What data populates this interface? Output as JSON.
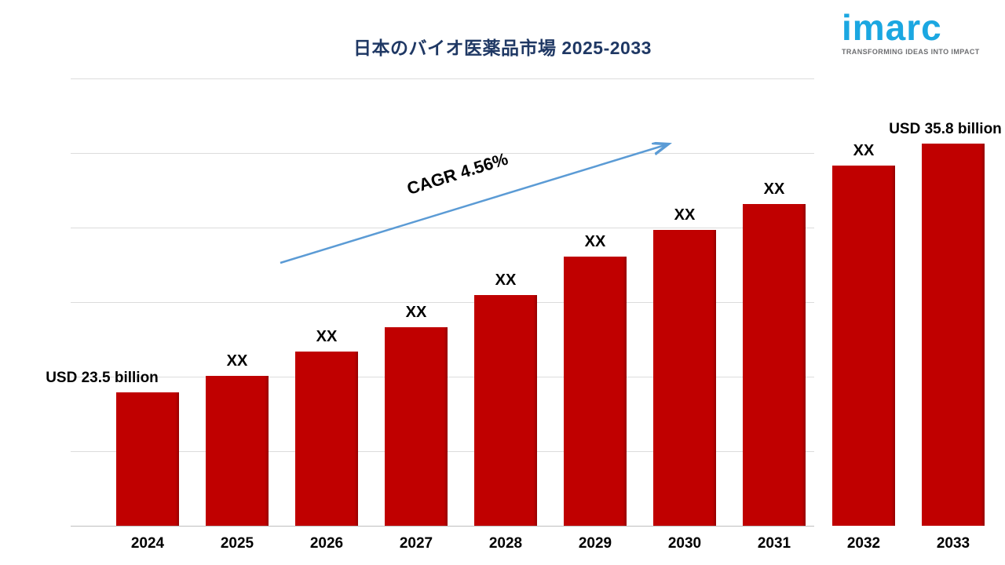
{
  "title": "日本のバイオ医薬品市場  2025-2033",
  "logo": {
    "brand": "imarc",
    "tagline": "TRANSFORMING IDEAS INTO IMPACT",
    "brand_color": "#1BA7E1"
  },
  "annotation": {
    "cagr_label": "CAGR  4.56%"
  },
  "chart_data": {
    "type": "bar",
    "title": "日本のバイオ医薬品市場  2025-2033",
    "categories": [
      "2024",
      "2025",
      "2026",
      "2027",
      "2028",
      "2029",
      "2030",
      "2031",
      "2032",
      "2033"
    ],
    "values": [
      23.5,
      24.3,
      25.5,
      26.7,
      28.3,
      30.2,
      31.5,
      32.8,
      34.7,
      35.8
    ],
    "bar_labels": [
      "USD 23.5 billion",
      "XX",
      "XX",
      "XX",
      "XX",
      "XX",
      "XX",
      "XX",
      "XX",
      "USD 35.8 billion"
    ],
    "unit": "USD billion",
    "bar_color": "#C00000",
    "annotation": "CAGR  4.56%",
    "arrow_color": "#5B9BD5",
    "ylim": [
      16.9,
      39
    ],
    "grid": true,
    "legend": false,
    "xlabel": "",
    "ylabel": ""
  }
}
